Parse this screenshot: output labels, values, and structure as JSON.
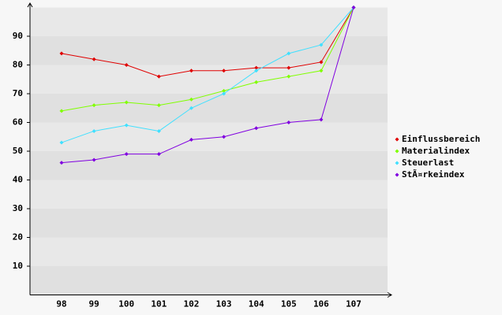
{
  "chart_data": {
    "type": "line",
    "categories": [
      "98",
      "99",
      "100",
      "101",
      "102",
      "103",
      "104",
      "105",
      "106",
      "107"
    ],
    "series": [
      {
        "name": "Einflussbereich",
        "color": "#e00000",
        "values": [
          84,
          82,
          80,
          76,
          78,
          78,
          79,
          79,
          81,
          100
        ]
      },
      {
        "name": "Materialindex",
        "color": "#80ff00",
        "values": [
          64,
          66,
          67,
          66,
          68,
          71,
          74,
          76,
          78,
          100
        ]
      },
      {
        "name": "Steuerlast",
        "color": "#40e0ff",
        "values": [
          53,
          57,
          59,
          57,
          65,
          70,
          78,
          84,
          87,
          100
        ]
      },
      {
        "name": "StÃ¤rkeindex",
        "color": "#8000e0",
        "values": [
          46,
          47,
          49,
          49,
          54,
          55,
          58,
          60,
          61,
          100
        ]
      }
    ],
    "ylim": [
      0,
      100
    ],
    "yticks": [
      10,
      20,
      30,
      40,
      50,
      60,
      70,
      80,
      90
    ],
    "grid": true,
    "legend": "right"
  }
}
